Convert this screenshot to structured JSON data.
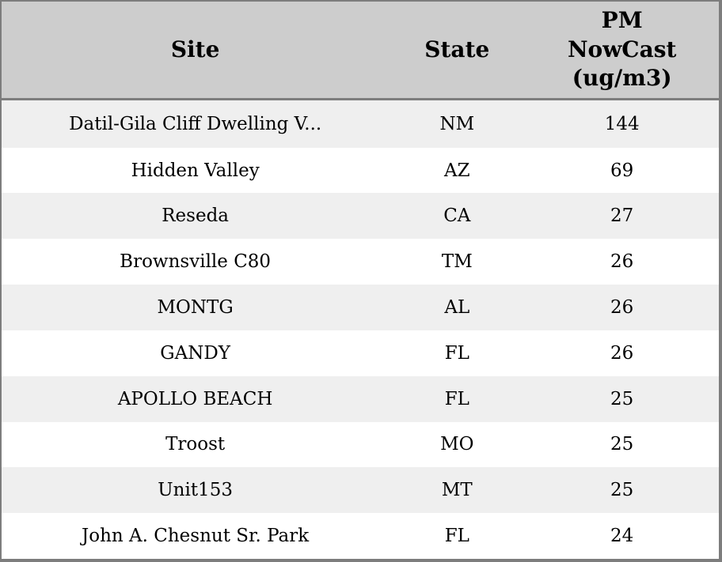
{
  "colors": {
    "header_bg": "#cdcdcd",
    "row_alt_bg": "#efefef",
    "row_bg": "#ffffff",
    "border": "#7d7d7d",
    "text": "#000000"
  },
  "table": {
    "header": {
      "site": "Site",
      "state": "State",
      "pm": "PM\nNowCast\n(ug/m3)"
    },
    "rows": [
      {
        "site": "Datil-Gila Cliff Dwelling V...",
        "state": "NM",
        "pm": "144"
      },
      {
        "site": "Hidden Valley",
        "state": "AZ",
        "pm": "69"
      },
      {
        "site": "Reseda",
        "state": "CA",
        "pm": "27"
      },
      {
        "site": "Brownsville C80",
        "state": "TM",
        "pm": "26"
      },
      {
        "site": "MONTG",
        "state": "AL",
        "pm": "26"
      },
      {
        "site": "GANDY",
        "state": "FL",
        "pm": "26"
      },
      {
        "site": "APOLLO BEACH",
        "state": "FL",
        "pm": "25"
      },
      {
        "site": "Troost",
        "state": "MO",
        "pm": "25"
      },
      {
        "site": "Unit153",
        "state": "MT",
        "pm": "25"
      },
      {
        "site": "John A. Chesnut Sr. Park",
        "state": "FL",
        "pm": "24"
      }
    ]
  }
}
